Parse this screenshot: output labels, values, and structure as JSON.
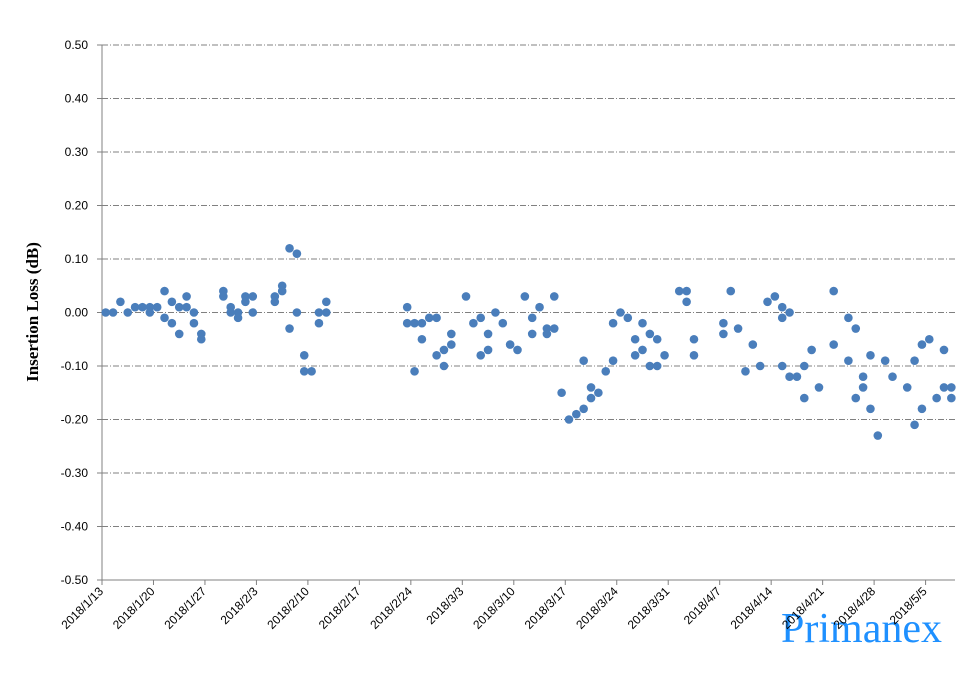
{
  "chart_data": {
    "type": "scatter",
    "y_label": "Insertion Loss (dB)",
    "watermark": "Primanex",
    "color": "#4a7ebb",
    "grid": true,
    "x": [
      "2018/1/13",
      "2018/1/14",
      "2018/1/15",
      "2018/1/16",
      "2018/1/17",
      "2018/1/18",
      "2018/1/19",
      "2018/1/19",
      "2018/1/20",
      "2018/1/21",
      "2018/1/21",
      "2018/1/22",
      "2018/1/22",
      "2018/1/23",
      "2018/1/23",
      "2018/1/24",
      "2018/1/24",
      "2018/1/25",
      "2018/1/25",
      "2018/1/26",
      "2018/1/26",
      "2018/1/29",
      "2018/1/29",
      "2018/1/30",
      "2018/1/30",
      "2018/1/31",
      "2018/1/31",
      "2018/2/1",
      "2018/2/1",
      "2018/2/2",
      "2018/2/2",
      "2018/2/5",
      "2018/2/5",
      "2018/2/6",
      "2018/2/6",
      "2018/2/7",
      "2018/2/7",
      "2018/2/8",
      "2018/2/8",
      "2018/2/9",
      "2018/2/9",
      "2018/2/10",
      "2018/2/11",
      "2018/2/11",
      "2018/2/12",
      "2018/2/12",
      "2018/2/23",
      "2018/2/23",
      "2018/2/24",
      "2018/2/24",
      "2018/2/25",
      "2018/2/25",
      "2018/2/26",
      "2018/2/27",
      "2018/2/27",
      "2018/2/28",
      "2018/2/28",
      "2018/3/1",
      "2018/3/1",
      "2018/3/3",
      "2018/3/4",
      "2018/3/5",
      "2018/3/5",
      "2018/3/6",
      "2018/3/6",
      "2018/3/7",
      "2018/3/8",
      "2018/3/9",
      "2018/3/10",
      "2018/3/11",
      "2018/3/12",
      "2018/3/12",
      "2018/3/13",
      "2018/3/14",
      "2018/3/14",
      "2018/3/15",
      "2018/3/15",
      "2018/3/16",
      "2018/3/17",
      "2018/3/18",
      "2018/3/19",
      "2018/3/19",
      "2018/3/20",
      "2018/3/20",
      "2018/3/21",
      "2018/3/22",
      "2018/3/23",
      "2018/3/23",
      "2018/3/24",
      "2018/3/25",
      "2018/3/26",
      "2018/3/26",
      "2018/3/27",
      "2018/3/27",
      "2018/3/28",
      "2018/3/28",
      "2018/3/29",
      "2018/3/29",
      "2018/3/30",
      "2018/4/1",
      "2018/4/2",
      "2018/4/2",
      "2018/4/3",
      "2018/4/3",
      "2018/4/7",
      "2018/4/7",
      "2018/4/8",
      "2018/4/9",
      "2018/4/10",
      "2018/4/11",
      "2018/4/12",
      "2018/4/13",
      "2018/4/14",
      "2018/4/15",
      "2018/4/15",
      "2018/4/15",
      "2018/4/16",
      "2018/4/16",
      "2018/4/17",
      "2018/4/18",
      "2018/4/18",
      "2018/4/19",
      "2018/4/20",
      "2018/4/22",
      "2018/4/22",
      "2018/4/24",
      "2018/4/24",
      "2018/4/25",
      "2018/4/25",
      "2018/4/26",
      "2018/4/26",
      "2018/4/27",
      "2018/4/27",
      "2018/4/28",
      "2018/4/29",
      "2018/4/30",
      "2018/5/2",
      "2018/5/3",
      "2018/5/3",
      "2018/5/4",
      "2018/5/4",
      "2018/5/5",
      "2018/5/6",
      "2018/5/7",
      "2018/5/7",
      "2018/5/8",
      "2018/5/8"
    ],
    "values": [
      0,
      0,
      0.02,
      0,
      0.01,
      0.01,
      0.01,
      0,
      0.01,
      0.04,
      -0.01,
      0.02,
      -0.02,
      0.01,
      -0.04,
      0.01,
      0.03,
      0,
      -0.02,
      -0.04,
      -0.05,
      0.04,
      0.03,
      0.01,
      0,
      0,
      -0.01,
      0.02,
      0.03,
      0.03,
      0,
      0.02,
      0.03,
      0.05,
      0.04,
      0.12,
      -0.03,
      0.11,
      0,
      -0.08,
      -0.11,
      -0.11,
      0,
      -0.02,
      0.02,
      0,
      0.01,
      -0.02,
      -0.02,
      -0.11,
      -0.02,
      -0.05,
      -0.01,
      -0.01,
      -0.08,
      -0.07,
      -0.1,
      -0.04,
      -0.06,
      0.03,
      -0.02,
      -0.01,
      -0.08,
      -0.04,
      -0.07,
      0,
      -0.02,
      -0.06,
      -0.07,
      0.03,
      -0.01,
      -0.04,
      0.01,
      -0.03,
      -0.04,
      0.03,
      -0.03,
      -0.15,
      -0.2,
      -0.19,
      -0.18,
      -0.09,
      -0.14,
      -0.16,
      -0.15,
      -0.11,
      -0.02,
      -0.09,
      0,
      -0.01,
      -0.05,
      -0.08,
      -0.02,
      -0.07,
      -0.04,
      -0.1,
      -0.05,
      -0.1,
      -0.08,
      0.04,
      0.04,
      0.02,
      -0.05,
      -0.08,
      -0.02,
      -0.04,
      0.04,
      -0.03,
      -0.11,
      -0.06,
      -0.1,
      0.02,
      0.03,
      0.01,
      -0.01,
      -0.1,
      0,
      -0.12,
      -0.12,
      -0.1,
      -0.16,
      -0.07,
      -0.14,
      0.04,
      -0.06,
      -0.01,
      -0.09,
      -0.03,
      -0.16,
      -0.12,
      -0.14,
      -0.08,
      -0.18,
      -0.23,
      -0.09,
      -0.12,
      -0.14,
      -0.09,
      -0.21,
      -0.06,
      -0.18,
      -0.05,
      -0.16,
      -0.07,
      -0.14,
      -0.14,
      -0.16
    ],
    "xlim": [
      "2018/1/13",
      "2018/5/9"
    ],
    "xticks": [
      "2018/1/13",
      "2018/1/20",
      "2018/1/27",
      "2018/2/3",
      "2018/2/10",
      "2018/2/17",
      "2018/2/24",
      "2018/3/3",
      "2018/3/10",
      "2018/3/17",
      "2018/3/24",
      "2018/3/31",
      "2018/4/7",
      "2018/4/14",
      "2018/4/21",
      "2018/4/28",
      "2018/5/5"
    ],
    "ylim": [
      -0.5,
      0.5
    ],
    "yticks": [
      {
        "value": -0.5,
        "label": "-0.50"
      },
      {
        "value": -0.4,
        "label": "-0.40"
      },
      {
        "value": -0.3,
        "label": "-0.30"
      },
      {
        "value": -0.2,
        "label": "-0.20"
      },
      {
        "value": -0.1,
        "label": "-0.10"
      },
      {
        "value": 0,
        "label": "0.00"
      },
      {
        "value": 0.1,
        "label": "0.10"
      },
      {
        "value": 0.2,
        "label": "0.20"
      },
      {
        "value": 0.3,
        "label": "0.30"
      },
      {
        "value": 0.4,
        "label": "0.40"
      },
      {
        "value": 0.5,
        "label": "0.50"
      }
    ]
  }
}
